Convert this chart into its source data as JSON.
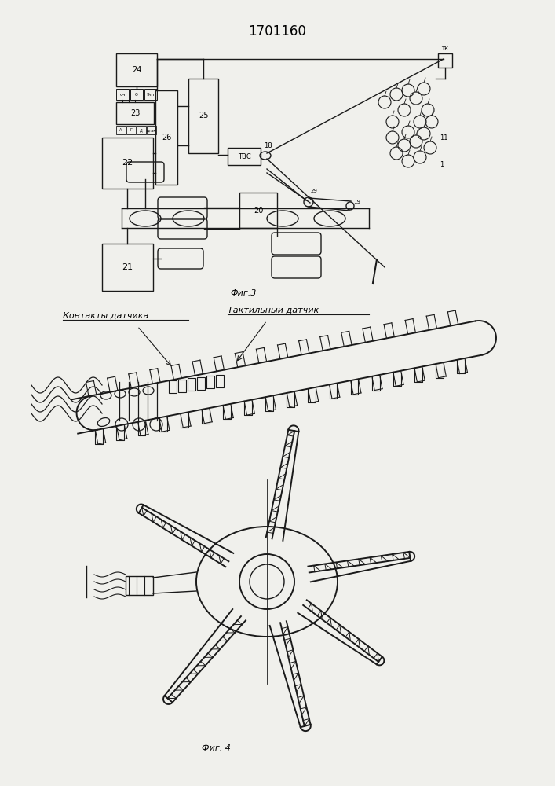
{
  "title": "1701160",
  "background_color": "#f0f0ec",
  "fig3_label": "Фиг.3",
  "fig4_label": "Фиг. 4",
  "label1": "Контакты датчика",
  "label2": "Тактильный датчик",
  "fig_width": 7.07,
  "fig_height": 10.0,
  "dpi": 100
}
